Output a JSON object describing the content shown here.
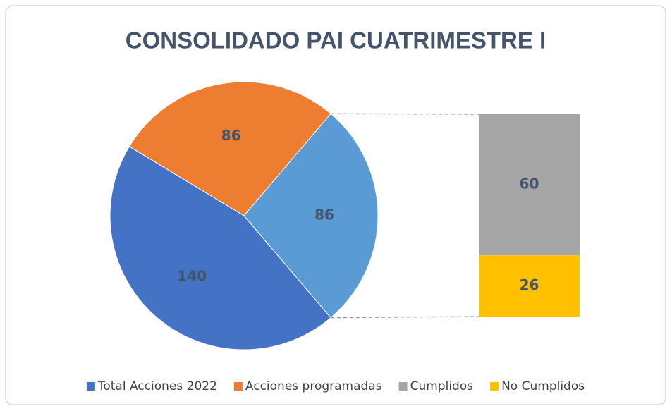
{
  "chart_data": {
    "type": "pie",
    "title": "CONSOLIDADO PAI CUATRIMESTRE I",
    "categories": [
      "Total Acciones 2022",
      "Acciones programadas",
      null
    ],
    "values": [
      140,
      86,
      86
    ],
    "colors": [
      "#4472c4",
      "#ed7d31",
      "#5b9bd5"
    ],
    "breakdown": {
      "categories": [
        "Cumplidos",
        "No Cumplidos"
      ],
      "values": [
        60,
        26
      ],
      "colors": [
        "#a5a5a5",
        "#ffc000"
      ]
    }
  }
}
